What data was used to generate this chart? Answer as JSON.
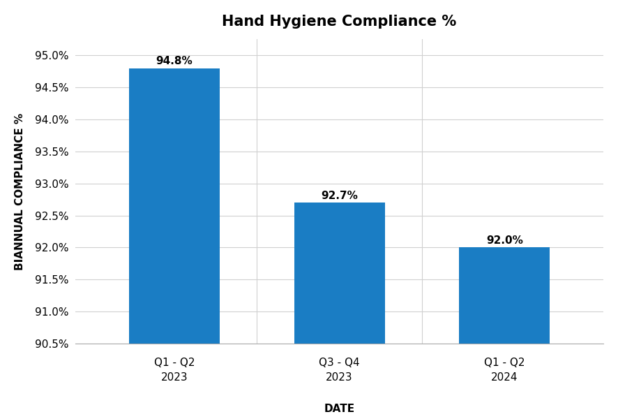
{
  "title": "Hand Hygiene Compliance %",
  "categories_line1": [
    "Q1 - Q2",
    "Q3 - Q4",
    "Q1 - Q2"
  ],
  "categories_line2": [
    "2023",
    "2023",
    "2024"
  ],
  "values": [
    94.8,
    92.7,
    92.0
  ],
  "bar_color": "#1a7dc4",
  "xlabel": "DATE",
  "ylabel": "BIANNUAL COMPLIANCE %",
  "ylim": [
    90.5,
    95.25
  ],
  "yticks": [
    90.5,
    91.0,
    91.5,
    92.0,
    92.5,
    93.0,
    93.5,
    94.0,
    94.5,
    95.0
  ],
  "bar_labels": [
    "94.8%",
    "92.7%",
    "92.0%"
  ],
  "label_fontsize": 11,
  "title_fontsize": 15,
  "axis_label_fontsize": 11,
  "tick_fontsize": 11,
  "background_color": "#ffffff",
  "bar_width": 0.55
}
